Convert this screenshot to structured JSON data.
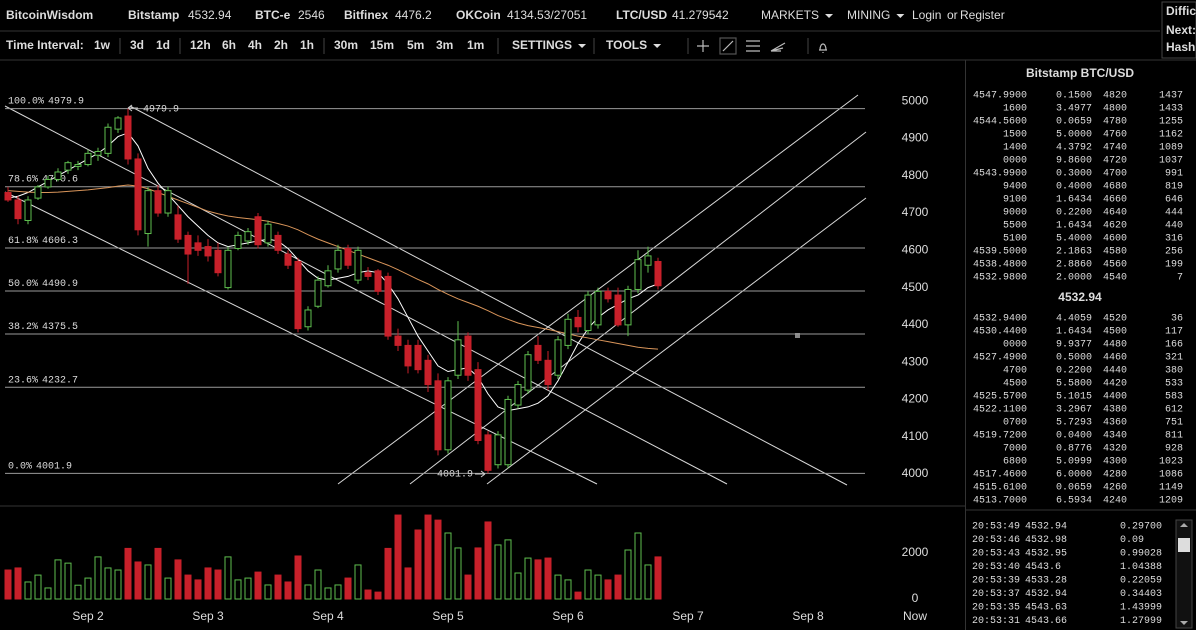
{
  "header": {
    "brand": "BitcoinWisdom",
    "markets": [
      {
        "name": "Bitstamp",
        "price": "4532.94"
      },
      {
        "name": "BTC-e",
        "price": "2546"
      },
      {
        "name": "Bitfinex",
        "price": "4476.2"
      },
      {
        "name": "OKCoin",
        "price": "4134.53/27051"
      },
      {
        "name": "LTC/USD",
        "price": "41.279542"
      }
    ],
    "menus": [
      "MARKETS",
      "MINING"
    ],
    "login": "Login",
    "or": "or",
    "register": "Register",
    "side_box": [
      "Diffic",
      "Next:",
      "Hash"
    ]
  },
  "toolbar": {
    "label": "Time Interval:",
    "intervals": [
      "1w",
      "3d",
      "1d",
      "12h",
      "6h",
      "4h",
      "2h",
      "1h",
      "30m",
      "15m",
      "5m",
      "3m",
      "1m"
    ],
    "selected_interval": "2h",
    "settings": "SETTINGS",
    "tools": "TOOLS"
  },
  "chart_data": {
    "type": "candlestick",
    "xlim": [
      -0.8,
      95.7
    ],
    "xticks": [
      {
        "value": 8,
        "label": "Sep 2"
      },
      {
        "value": 20,
        "label": "Sep 3"
      },
      {
        "value": 32,
        "label": "Sep 4"
      },
      {
        "value": 44,
        "label": "Sep 5"
      },
      {
        "value": 56,
        "label": "Sep 6"
      },
      {
        "value": 68,
        "label": "Sep 7"
      },
      {
        "value": 80,
        "label": "Sep 8"
      },
      {
        "value": 90.7,
        "label": "Now"
      }
    ],
    "ylim": [
      3917,
      5105
    ],
    "yticks": [
      4000,
      4100,
      4200,
      4300,
      4400,
      4500,
      4600,
      4700,
      4800,
      4900,
      5000
    ],
    "up_color": "#5fbf4f",
    "down_color": "#c8202a",
    "open": [
      4755,
      4735,
      4680,
      4740,
      4770,
      4790,
      4815,
      4825,
      4830,
      4855,
      4860,
      4925,
      4960,
      4845,
      4645,
      4760,
      4700,
      4695,
      4640,
      4620,
      4610,
      4600,
      4500,
      4605,
      4625,
      4690,
      4620,
      4640,
      4590,
      4570,
      4395,
      4450,
      4505,
      4550,
      4605,
      4520,
      4540,
      4545,
      4530,
      4370,
      4345,
      4345,
      4305,
      4250,
      4065,
      4265,
      4370,
      4280,
      4105,
      4025,
      4025,
      4185,
      4225,
      4345,
      4305,
      4265,
      4345,
      4420,
      4385,
      4400,
      4490,
      4480,
      4400,
      4495,
      4560,
      4570
    ],
    "high": [
      4770,
      4745,
      4745,
      4775,
      4800,
      4820,
      4840,
      4840,
      4870,
      4875,
      4940,
      4960,
      4979.9,
      4860,
      4770,
      4775,
      4770,
      4720,
      4650,
      4640,
      4630,
      4620,
      4610,
      4650,
      4660,
      4700,
      4680,
      4650,
      4600,
      4580,
      4450,
      4530,
      4560,
      4615,
      4615,
      4610,
      4555,
      4550,
      4540,
      4390,
      4360,
      4360,
      4320,
      4270,
      4260,
      4410,
      4380,
      4300,
      4115,
      4115,
      4210,
      4250,
      4330,
      4370,
      4330,
      4370,
      4430,
      4440,
      4490,
      4500,
      4500,
      4500,
      4505,
      4600,
      4610,
      4580
    ],
    "low": [
      4730,
      4670,
      4670,
      4735,
      4765,
      4785,
      4805,
      4815,
      4825,
      4840,
      4850,
      4915,
      4830,
      4640,
      4610,
      4690,
      4690,
      4620,
      4510,
      4585,
      4570,
      4530,
      4495,
      4600,
      4615,
      4605,
      4610,
      4590,
      4550,
      4380,
      4385,
      4445,
      4500,
      4540,
      4550,
      4510,
      4520,
      4480,
      4360,
      4330,
      4270,
      4270,
      4220,
      4050,
      4055,
      4255,
      4250,
      4080,
      4001.9,
      4015,
      4015,
      4175,
      4215,
      4295,
      4225,
      4255,
      4335,
      4380,
      4375,
      4390,
      4460,
      4395,
      4370,
      4485,
      4540,
      4495
    ],
    "close": [
      4735,
      4685,
      4735,
      4770,
      4790,
      4810,
      4835,
      4830,
      4860,
      4865,
      4930,
      4955,
      4845,
      4655,
      4760,
      4700,
      4760,
      4630,
      4590,
      4600,
      4585,
      4540,
      4600,
      4640,
      4650,
      4615,
      4670,
      4600,
      4560,
      4390,
      4440,
      4520,
      4545,
      4600,
      4560,
      4600,
      4530,
      4490,
      4370,
      4345,
      4290,
      4280,
      4240,
      4065,
      4250,
      4360,
      4265,
      4090,
      4010,
      4105,
      4200,
      4240,
      4320,
      4305,
      4240,
      4360,
      4415,
      4395,
      4480,
      4490,
      4470,
      4400,
      4495,
      4575,
      4585,
      4505
    ],
    "moving_averages": [
      {
        "color": "#ffffff",
        "values": [
          4740,
          4745,
          4755,
          4770,
          4785,
          4800,
          4815,
          4830,
          4845,
          4860,
          4880,
          4905,
          4915,
          4880,
          4820,
          4780,
          4750,
          4720,
          4690,
          4665,
          4640,
          4620,
          4610,
          4615,
          4620,
          4625,
          4630,
          4625,
          4605,
          4575,
          4545,
          4525,
          4520,
          4525,
          4530,
          4540,
          4545,
          4540,
          4510,
          4470,
          4420,
          4370,
          4330,
          4290,
          4275,
          4280,
          4285,
          4260,
          4215,
          4180,
          4170,
          4175,
          4180,
          4190,
          4210,
          4250,
          4300,
          4350,
          4390,
          4420,
          4440,
          4455,
          4470,
          4480,
          4500,
          4510
        ]
      },
      {
        "color": "#d9955a",
        "values": [
          4760,
          4758,
          4756,
          4755,
          4755,
          4756,
          4758,
          4760,
          4762,
          4765,
          4768,
          4772,
          4775,
          4772,
          4765,
          4755,
          4745,
          4735,
          4725,
          4715,
          4705,
          4698,
          4692,
          4688,
          4685,
          4682,
          4678,
          4672,
          4665,
          4655,
          4642,
          4630,
          4620,
          4610,
          4600,
          4590,
          4580,
          4570,
          4560,
          4548,
          4535,
          4522,
          4510,
          4495,
          4482,
          4470,
          4460,
          4450,
          4438,
          4425,
          4415,
          4405,
          4398,
          4393,
          4388,
          4382,
          4376,
          4370,
          4365,
          4360,
          4355,
          4350,
          4345,
          4340,
          4337,
          4335
        ]
      }
    ],
    "fib_color": "#9a9a9a",
    "fib_levels": [
      {
        "percent": "100.0%",
        "price": 4979.9
      },
      {
        "percent": "78.6%",
        "price": 4770.6
      },
      {
        "percent": "61.8%",
        "price": 4606.3
      },
      {
        "percent": "50.0%",
        "price": 4490.9
      },
      {
        "percent": "38.2%",
        "price": 4375.5
      },
      {
        "percent": "23.6%",
        "price": 4232.7
      },
      {
        "percent": "0.0%",
        "price": 4001.9
      }
    ],
    "volume": {
      "ylim": [
        0,
        3870
      ],
      "yticks": [
        0,
        2000
      ],
      "values": [
        1260,
        1350,
        740,
        1040,
        480,
        1700,
        1560,
        600,
        910,
        1830,
        1350,
        1260,
        2200,
        1610,
        1480,
        2200,
        910,
        1700,
        1040,
        830,
        1350,
        1260,
        1830,
        830,
        910,
        1170,
        610,
        1040,
        740,
        1870,
        610,
        1260,
        480,
        610,
        910,
        1480,
        390,
        300,
        2200,
        3650,
        1350,
        3000,
        3650,
        3430,
        2870,
        2220,
        1040,
        2220,
        3350,
        2350,
        2570,
        1130,
        1780,
        1700,
        1780,
        1040,
        830,
        300,
        1260,
        1040,
        830,
        1040,
        2130,
        2870,
        1480,
        1830
      ]
    }
  },
  "order_book": {
    "title": "Bitstamp BTC/USD",
    "asks": [
      [
        "4547.9900",
        "0.1500",
        "4820",
        "1437"
      ],
      [
        "1600",
        "3.4977",
        "4800",
        "1433"
      ],
      [
        "4544.5600",
        "0.0659",
        "4780",
        "1255"
      ],
      [
        "1500",
        "5.0000",
        "4760",
        "1162"
      ],
      [
        "1400",
        "4.3792",
        "4740",
        "1089"
      ],
      [
        "0000",
        "9.8600",
        "4720",
        "1037"
      ],
      [
        "4543.9900",
        "0.3000",
        "4700",
        "991"
      ],
      [
        "9400",
        "0.4000",
        "4680",
        "819"
      ],
      [
        "9100",
        "1.6434",
        "4660",
        "646"
      ],
      [
        "9000",
        "0.2200",
        "4640",
        "444"
      ],
      [
        "5500",
        "1.6434",
        "4620",
        "440"
      ],
      [
        "5100",
        "5.4000",
        "4600",
        "316"
      ],
      [
        "4539.5000",
        "2.1863",
        "4580",
        "256"
      ],
      [
        "4538.4800",
        "2.8860",
        "4560",
        "199"
      ],
      [
        "4532.9800",
        "2.0000",
        "4540",
        "7"
      ]
    ],
    "last_price": "4532.94",
    "bids": [
      [
        "4532.9400",
        "4.4059",
        "4520",
        "36"
      ],
      [
        "4530.4400",
        "1.6434",
        "4500",
        "117"
      ],
      [
        "0000",
        "9.9377",
        "4480",
        "166"
      ],
      [
        "4527.4900",
        "0.5000",
        "4460",
        "321"
      ],
      [
        "4700",
        "0.2200",
        "4440",
        "380"
      ],
      [
        "4500",
        "5.5800",
        "4420",
        "533"
      ],
      [
        "4525.5700",
        "5.1015",
        "4400",
        "583"
      ],
      [
        "4522.1100",
        "3.2967",
        "4380",
        "612"
      ],
      [
        "0700",
        "5.7293",
        "4360",
        "751"
      ],
      [
        "4519.7200",
        "0.0400",
        "4340",
        "811"
      ],
      [
        "7000",
        "0.8776",
        "4320",
        "928"
      ],
      [
        "6800",
        "5.0999",
        "4300",
        "1023"
      ],
      [
        "4517.4600",
        "6.0000",
        "4280",
        "1086"
      ],
      [
        "4515.6100",
        "0.0659",
        "4260",
        "1149"
      ],
      [
        "4513.7000",
        "6.5934",
        "4240",
        "1209"
      ]
    ]
  },
  "trades": [
    {
      "time": "20:53:49",
      "price": "4532.94",
      "amount": "0.29700",
      "color": "#e03a3a"
    },
    {
      "time": "20:53:46",
      "price": "4532.98",
      "amount": "0.09",
      "color": "#5fcf5f"
    },
    {
      "time": "20:53:43",
      "price": "4532.95",
      "amount": "0.99028",
      "color": "#e03a3a"
    },
    {
      "time": "20:53:40",
      "price": "4543.6",
      "amount": "1.04388",
      "color": "#5fcf5f"
    },
    {
      "time": "20:53:39",
      "price": "4533.28",
      "amount": "0.22059",
      "color": "#e03a3a"
    },
    {
      "time": "20:53:37",
      "price": "4532.94",
      "amount": "0.34403",
      "color": "#e03a3a"
    },
    {
      "time": "20:53:35",
      "price": "4543.63",
      "amount": "1.43999",
      "color": "#5fcf5f"
    },
    {
      "time": "20:53:31",
      "price": "4543.66",
      "amount": "1.27999",
      "color": "#5fcf5f"
    }
  ]
}
